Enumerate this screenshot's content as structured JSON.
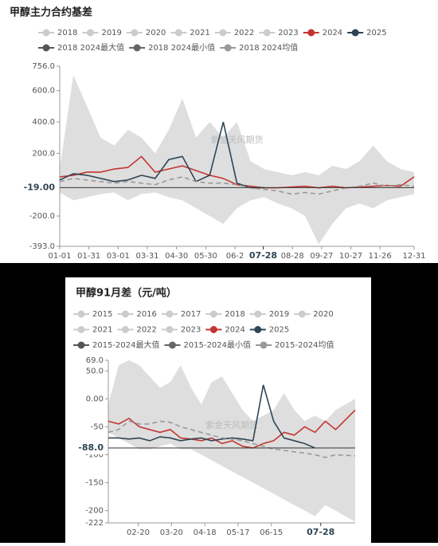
{
  "chart_data": [
    {
      "type": "line",
      "title": "甲醇主力合约基差",
      "watermark": "紫金天风期货",
      "x": [
        1,
        15,
        29,
        43,
        57,
        71,
        85,
        99,
        113,
        127,
        141,
        155,
        169,
        183,
        197,
        211,
        225,
        239,
        253,
        267,
        281,
        295,
        309,
        323,
        337,
        351,
        365
      ],
      "xlim": [
        1,
        365
      ],
      "xticks": [
        {
          "value": 1,
          "label": "01-01"
        },
        {
          "value": 31,
          "label": "01-31"
        },
        {
          "value": 61,
          "label": "03-01"
        },
        {
          "value": 91,
          "label": "03-31"
        },
        {
          "value": 121,
          "label": "04-30"
        },
        {
          "value": 151,
          "label": "05-30"
        },
        {
          "value": 181,
          "label": "06-2"
        },
        {
          "value": 240,
          "label": "08-28"
        },
        {
          "value": 270,
          "label": "09-27"
        },
        {
          "value": 300,
          "label": "10-27"
        },
        {
          "value": 330,
          "label": "11-26"
        },
        {
          "value": 365,
          "label": "12-31"
        }
      ],
      "ylim": [
        -393,
        756
      ],
      "yticks": [
        {
          "value": 756,
          "label": "756.0"
        },
        {
          "value": 600,
          "label": "600.0"
        },
        {
          "value": 400,
          "label": "400.0"
        },
        {
          "value": 200,
          "label": "200.0"
        },
        {
          "value": -200,
          "label": "-200.0"
        },
        {
          "value": -393,
          "label": "-393.0"
        }
      ],
      "crosshair": {
        "y": {
          "value": -19,
          "label": "-19.00"
        },
        "x": {
          "value": 210,
          "label": "07-28"
        }
      },
      "inactive_legend": [
        "2018",
        "2019",
        "2020",
        "2021",
        "2022",
        "2023"
      ],
      "inactive_color": "#cccccc",
      "band_color": "#dedede",
      "series": [
        {
          "name": "2024",
          "color": "#c23531",
          "style": "line",
          "values": [
            50,
            60,
            80,
            80,
            100,
            110,
            180,
            80,
            100,
            120,
            90,
            60,
            40,
            0,
            -10,
            -20,
            -20,
            -15,
            -10,
            -20,
            -10,
            -20,
            -15,
            -10,
            -5,
            -10,
            50
          ]
        },
        {
          "name": "2025",
          "color": "#2f4554",
          "style": "line",
          "values": [
            30,
            70,
            60,
            40,
            20,
            30,
            60,
            40,
            160,
            180,
            20,
            60,
            400,
            10,
            -20,
            -19,
            null,
            null,
            null,
            null,
            null,
            null,
            null,
            null,
            null,
            null,
            null
          ]
        },
        {
          "name": "2018 2024最大值",
          "color": "#555555",
          "style": "area-top",
          "values": [
            100,
            700,
            500,
            300,
            250,
            350,
            300,
            200,
            350,
            550,
            300,
            400,
            300,
            400,
            150,
            100,
            80,
            60,
            80,
            60,
            120,
            100,
            150,
            250,
            150,
            100,
            80
          ]
        },
        {
          "name": "2018 2024最小值",
          "color": "#666666",
          "style": "area-bottom",
          "values": [
            -50,
            -100,
            -80,
            -60,
            -50,
            -100,
            -60,
            -50,
            -80,
            -100,
            -150,
            -200,
            -250,
            -150,
            -100,
            -80,
            -120,
            -150,
            -200,
            -380,
            -250,
            -150,
            -120,
            -150,
            -100,
            -80,
            -60
          ]
        },
        {
          "name": "2018 2024均值",
          "color": "#999999",
          "style": "dashed",
          "values": [
            20,
            40,
            30,
            20,
            10,
            20,
            10,
            0,
            30,
            50,
            20,
            10,
            10,
            0,
            -20,
            -30,
            -40,
            -60,
            -50,
            -60,
            -40,
            -20,
            -10,
            10,
            -10,
            0,
            -10
          ]
        }
      ]
    },
    {
      "type": "line",
      "title": "甲醇91月差（元/吨）",
      "watermark": "紫金天风期货",
      "x": [
        25,
        34,
        43,
        52,
        61,
        70,
        79,
        88,
        97,
        106,
        115,
        124,
        133,
        142,
        151,
        160,
        169,
        178,
        187,
        196,
        205,
        214,
        223,
        240
      ],
      "xlim": [
        25,
        240
      ],
      "xticks": [
        {
          "value": 51,
          "label": "02-20"
        },
        {
          "value": 80,
          "label": "03-20"
        },
        {
          "value": 109,
          "label": "04-18"
        },
        {
          "value": 138,
          "label": "05-17"
        },
        {
          "value": 167,
          "label": "06-15"
        }
      ],
      "ylim": [
        -222,
        69
      ],
      "yticks": [
        {
          "value": 69,
          "label": "69.0"
        },
        {
          "value": 50,
          "label": "50.0"
        },
        {
          "value": 0,
          "label": "0.00"
        },
        -50,
        -100,
        -150,
        -200,
        -222
      ],
      "crosshair": {
        "y": {
          "value": -88,
          "label": "-88.0"
        },
        "x": {
          "value": 210,
          "label": "07-28"
        }
      },
      "inactive_legend": [
        "2015",
        "2016",
        "2017",
        "2018",
        "2019",
        "2020",
        "2021",
        "2022",
        "2023"
      ],
      "inactive_color": "#cccccc",
      "band_color": "#dedede",
      "series": [
        {
          "name": "2024",
          "color": "#c23531",
          "style": "line",
          "values": [
            -40,
            -45,
            -35,
            -50,
            -55,
            -60,
            -55,
            -70,
            -72,
            -75,
            -70,
            -80,
            -75,
            -85,
            -88,
            -80,
            -75,
            -60,
            -65,
            -50,
            -60,
            -40,
            -55,
            -20
          ]
        },
        {
          "name": "2025",
          "color": "#2f4554",
          "style": "line",
          "values": [
            -70,
            -70,
            -72,
            -70,
            -75,
            -68,
            -70,
            -75,
            -72,
            -70,
            -75,
            -72,
            -70,
            -72,
            -75,
            25,
            -40,
            -70,
            -75,
            -80,
            -88,
            null,
            null,
            null
          ]
        },
        {
          "name": "2015-2024最大值",
          "color": "#555555",
          "style": "area-top",
          "values": [
            -10,
            60,
            69,
            60,
            40,
            20,
            30,
            60,
            20,
            -10,
            30,
            40,
            10,
            -20,
            -40,
            -30,
            -20,
            10,
            -20,
            -40,
            -30,
            -40,
            -20,
            0
          ]
        },
        {
          "name": "2015-2024最小值",
          "color": "#666666",
          "style": "area-bottom",
          "values": [
            -60,
            -70,
            -80,
            -90,
            -90,
            -85,
            -80,
            -90,
            -90,
            -100,
            -110,
            -120,
            -130,
            -140,
            -150,
            -160,
            -170,
            -180,
            -190,
            -200,
            -210,
            -190,
            -200,
            -220
          ]
        },
        {
          "name": "2015-2024均值",
          "color": "#999999",
          "style": "dashed",
          "values": [
            -60,
            -55,
            -40,
            -45,
            -45,
            -40,
            -42,
            -50,
            -55,
            -60,
            -65,
            -70,
            -72,
            -75,
            -80,
            -85,
            -90,
            -92,
            -95,
            -97,
            -100,
            -105,
            -100,
            -102
          ]
        }
      ]
    }
  ]
}
